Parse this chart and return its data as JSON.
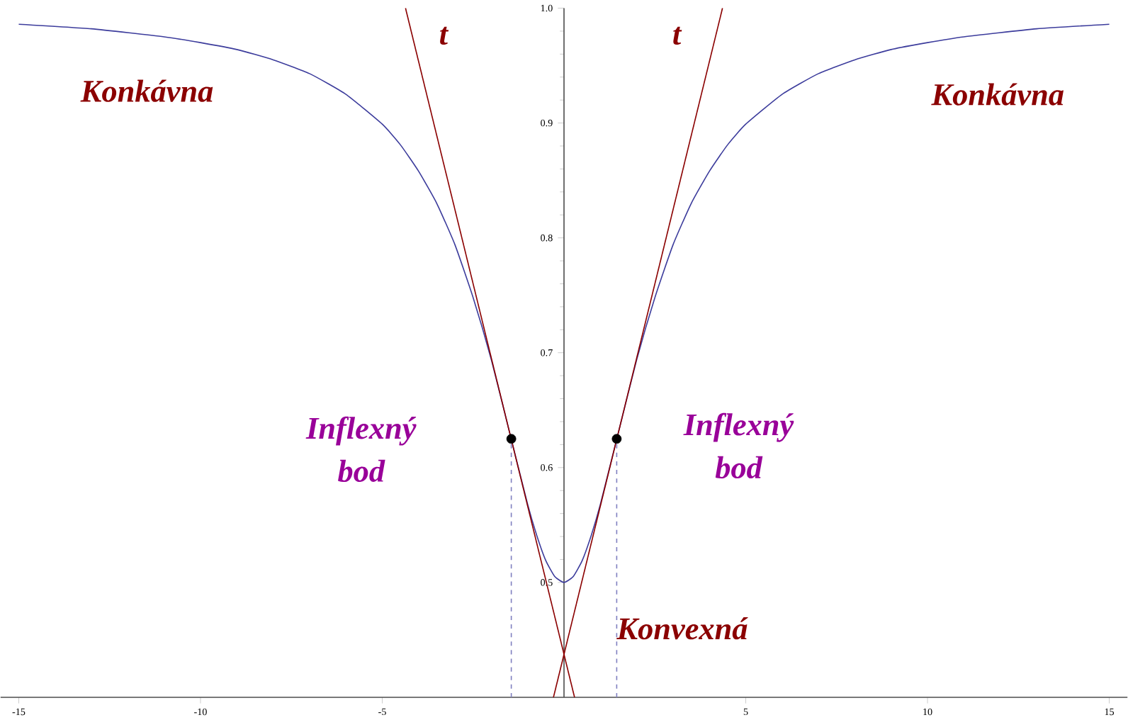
{
  "chart_data": {
    "type": "line",
    "xlim": [
      -15.5,
      15.5
    ],
    "ylim": [
      0.4,
      1.0
    ],
    "xticks": [
      -15,
      -10,
      -5,
      5,
      10,
      15
    ],
    "yticks": [
      0.5,
      0.6,
      0.7,
      0.8,
      0.9,
      {
        "value": 1.0,
        "label": "1.0"
      }
    ],
    "grid": false,
    "series": [
      {
        "color": "#3c3c9c",
        "x": [
          -15,
          -13,
          -11,
          -10,
          -9,
          -8,
          -7,
          -6,
          -5,
          -4.5,
          -4,
          -3.5,
          -3,
          -2.5,
          -2,
          -1.5,
          -1,
          -0.75,
          -0.5,
          -0.25,
          0,
          0.25,
          0.5,
          0.75,
          1,
          1.5,
          2,
          2.5,
          3,
          3.5,
          4,
          4.5,
          5,
          6,
          7,
          8,
          9,
          10,
          11,
          13,
          15
        ],
        "values": [
          0.986,
          0.982,
          0.975,
          0.97,
          0.964,
          0.955,
          0.943,
          0.925,
          0.899,
          0.881,
          0.858,
          0.83,
          0.794,
          0.748,
          0.694,
          0.631,
          0.568,
          0.541,
          0.519,
          0.505,
          0.5,
          0.505,
          0.519,
          0.541,
          0.568,
          0.631,
          0.694,
          0.748,
          0.794,
          0.83,
          0.858,
          0.881,
          0.899,
          0.925,
          0.943,
          0.955,
          0.964,
          0.97,
          0.975,
          0.982,
          0.986
        ]
      },
      {
        "color": "#8b0000",
        "x": [
          -4.36,
          0.29
        ],
        "values": [
          1.0,
          0.4
        ]
      },
      {
        "color": "#8b0000",
        "x": [
          -0.29,
          4.36
        ],
        "values": [
          0.4,
          1.0
        ]
      },
      {
        "color": "#8080c0",
        "line_style": "dashed",
        "x": [
          -1.45,
          -1.45
        ],
        "values": [
          0.4,
          0.625
        ]
      },
      {
        "color": "#8080c0",
        "line_style": "dashed",
        "x": [
          1.45,
          1.45
        ],
        "values": [
          0.4,
          0.625
        ]
      },
      {
        "type": "scatter",
        "marker": "circle",
        "color": "#000000",
        "x": [
          -1.45,
          1.45
        ],
        "values": [
          0.625,
          0.625
        ]
      }
    ],
    "annotations": [
      "Konkávna",
      "t",
      "t",
      "Konkávna",
      "Inflexný bod",
      "Inflexný bod",
      "Konvexná"
    ]
  }
}
